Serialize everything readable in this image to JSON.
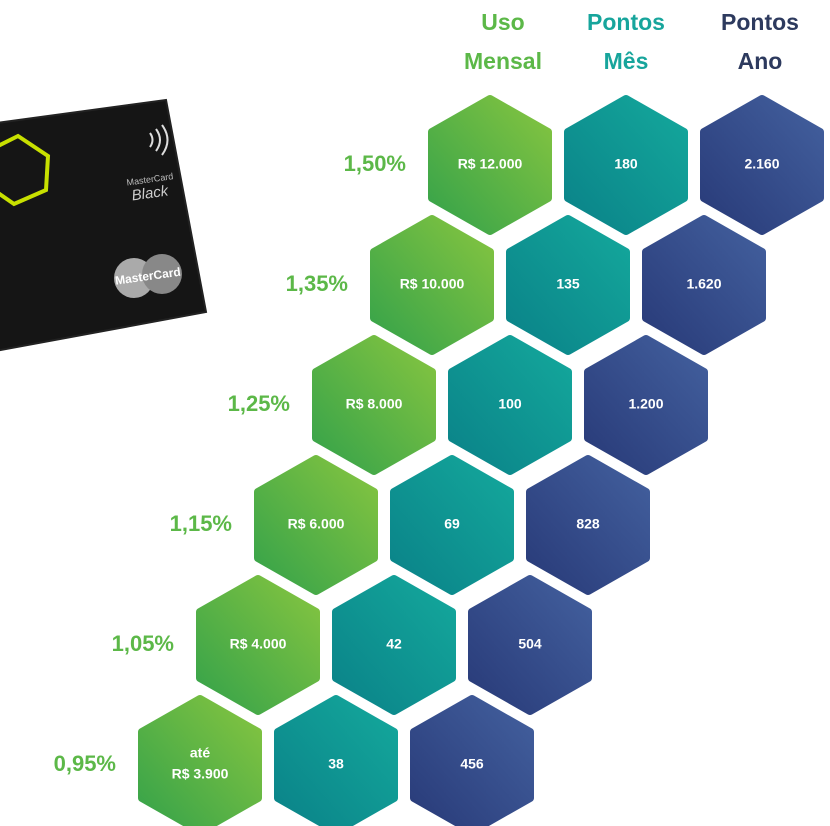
{
  "headers": [
    {
      "line1": "Uso",
      "line2": "Mensal",
      "color": "#5cb848"
    },
    {
      "line1": "Pontos",
      "line2": "Mês",
      "color": "#17a59c"
    },
    {
      "line1": "Pontos",
      "line2": "Ano",
      "color": "#2d3a5e"
    }
  ],
  "rows": [
    {
      "rate": "1,50%",
      "uso": "R$ 12.000",
      "pontos_mes": "180",
      "pontos_ano": "2.160"
    },
    {
      "rate": "1,35%",
      "uso": "R$ 10.000",
      "pontos_mes": "135",
      "pontos_ano": "1.620"
    },
    {
      "rate": "1,25%",
      "uso": "R$ 8.000",
      "pontos_mes": "100",
      "pontos_ano": "1.200"
    },
    {
      "rate": "1,15%",
      "uso": "R$ 6.000",
      "pontos_mes": "69",
      "pontos_ano": "828"
    },
    {
      "rate": "1,05%",
      "uso": "R$ 4.000",
      "pontos_mes": "42",
      "pontos_ano": "504"
    },
    {
      "rate": "0,95%",
      "uso_note": "até",
      "uso": "R$ 3.900",
      "pontos_mes": "38",
      "pontos_ano": "456"
    }
  ],
  "card": {
    "brand_small": "MasterCard",
    "type": "Black",
    "brand": "MasterCard"
  }
}
